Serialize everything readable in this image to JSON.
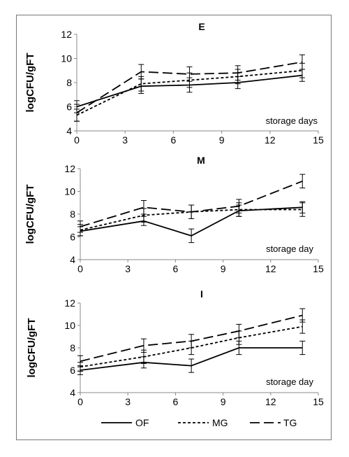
{
  "legend": [
    {
      "name": "OF",
      "style": "solid"
    },
    {
      "name": "MG",
      "style": "dotted"
    },
    {
      "name": "TG",
      "style": "dashed"
    }
  ],
  "colors": {
    "line": "#000000",
    "frame": "#777777",
    "axis": "#888888"
  },
  "chart_data": [
    {
      "type": "line",
      "title": "E",
      "ylabel": "logCFU/gFT",
      "xlabel": "storage days",
      "xlim": [
        0,
        15
      ],
      "xticks": [
        0,
        3,
        6,
        9,
        12,
        15
      ],
      "ylim": [
        4,
        12
      ],
      "yticks": [
        4,
        6,
        8,
        10,
        12
      ],
      "grid": false,
      "x": [
        0,
        4,
        7,
        10,
        14
      ],
      "series": [
        {
          "name": "OF",
          "style": "solid",
          "values": [
            6.0,
            7.7,
            7.8,
            8.0,
            8.6
          ],
          "errors": [
            0.5,
            0.6,
            0.6,
            0.5,
            0.5
          ]
        },
        {
          "name": "MG",
          "style": "dotted",
          "values": [
            5.3,
            7.9,
            8.2,
            8.5,
            9.0
          ],
          "errors": [
            0.5,
            0.6,
            0.6,
            0.6,
            0.6
          ]
        },
        {
          "name": "TG",
          "style": "dashed",
          "values": [
            5.5,
            8.9,
            8.7,
            8.8,
            9.7
          ],
          "errors": [
            0.7,
            0.6,
            0.6,
            0.6,
            0.6
          ]
        }
      ]
    },
    {
      "type": "line",
      "title": "M",
      "ylabel": "logCFU/gFT",
      "xlabel": "storage day",
      "xlim": [
        0,
        15
      ],
      "xticks": [
        0,
        3,
        6,
        9,
        12,
        15
      ],
      "ylim": [
        4,
        12
      ],
      "yticks": [
        4,
        6,
        8,
        10,
        12
      ],
      "grid": false,
      "x": [
        0,
        4,
        7,
        10,
        14
      ],
      "series": [
        {
          "name": "OF",
          "style": "solid",
          "values": [
            6.5,
            7.4,
            6.1,
            8.3,
            8.6
          ],
          "errors": [
            0.4,
            0.4,
            0.6,
            0.5,
            0.5
          ]
        },
        {
          "name": "MG",
          "style": "dotted",
          "values": [
            6.6,
            7.9,
            8.2,
            8.4,
            8.4
          ],
          "errors": [
            0.5,
            0.6,
            0.6,
            0.6,
            0.6
          ]
        },
        {
          "name": "TG",
          "style": "dashed",
          "values": [
            6.9,
            8.6,
            8.2,
            8.7,
            10.9
          ],
          "errors": [
            0.5,
            0.6,
            0.6,
            0.6,
            0.6
          ]
        }
      ]
    },
    {
      "type": "line",
      "title": "I",
      "ylabel": "logCFU/gFT",
      "xlabel": "storage day",
      "xlim": [
        0,
        15
      ],
      "xticks": [
        0,
        3,
        6,
        9,
        12,
        15
      ],
      "ylim": [
        4,
        12
      ],
      "yticks": [
        4,
        6,
        8,
        10,
        12
      ],
      "grid": false,
      "x": [
        0,
        4,
        7,
        10,
        14
      ],
      "series": [
        {
          "name": "OF",
          "style": "solid",
          "values": [
            6.0,
            6.7,
            6.4,
            8.0,
            8.0
          ],
          "errors": [
            0.4,
            0.5,
            0.6,
            0.6,
            0.6
          ]
        },
        {
          "name": "MG",
          "style": "dotted",
          "values": [
            6.3,
            7.2,
            8.0,
            8.9,
            9.9
          ],
          "errors": [
            0.4,
            0.6,
            0.6,
            0.6,
            0.6
          ]
        },
        {
          "name": "TG",
          "style": "dashed",
          "values": [
            6.8,
            8.2,
            8.6,
            9.5,
            10.9
          ],
          "errors": [
            0.5,
            0.6,
            0.6,
            0.6,
            0.6
          ]
        }
      ]
    }
  ]
}
